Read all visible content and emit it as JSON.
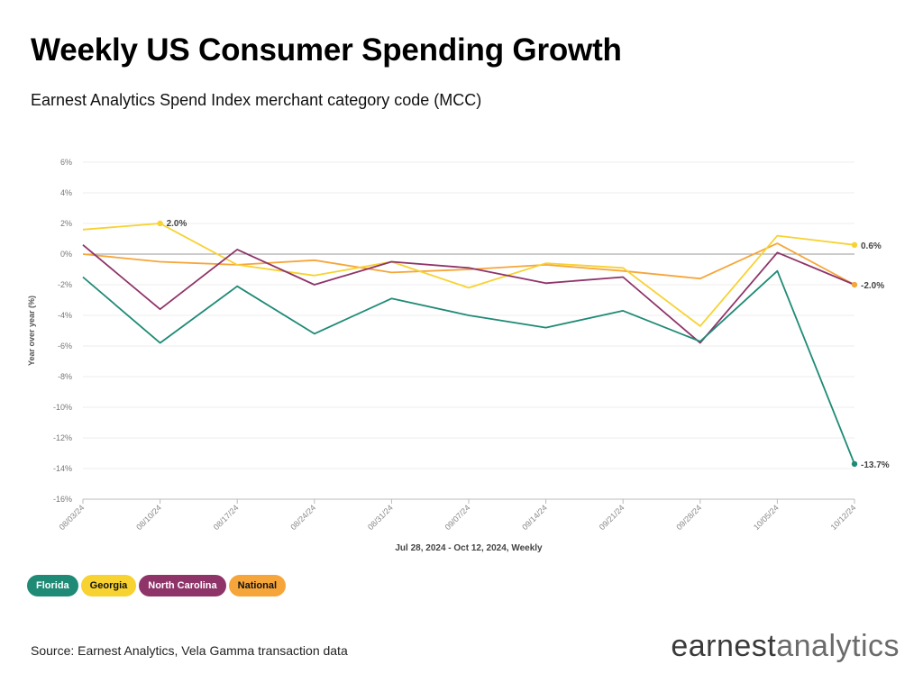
{
  "header": {
    "title": "Weekly US Consumer Spending Growth",
    "subtitle": "Earnest Analytics Spend Index merchant category code (MCC)"
  },
  "footer": {
    "source": "Source: Earnest Analytics, Vela Gamma transaction data",
    "brand_part1": "earnest",
    "brand_part2": "analytics"
  },
  "legend": [
    {
      "label": "Florida",
      "bg": "#1f8a76",
      "fg": "#ffffff"
    },
    {
      "label": "Georgia",
      "bg": "#f7d230",
      "fg": "#111111"
    },
    {
      "label": "North Carolina",
      "bg": "#8e3469",
      "fg": "#ffffff"
    },
    {
      "label": "National",
      "bg": "#f6a53a",
      "fg": "#111111"
    }
  ],
  "chart_data": {
    "type": "line",
    "xlabel": "Jul 28, 2024 - Oct 12, 2024, Weekly",
    "ylabel": "Year over year (%)",
    "ylim": [
      -16,
      6
    ],
    "yticks": [
      6,
      4,
      2,
      0,
      -2,
      -4,
      -6,
      -8,
      -10,
      -12,
      -14,
      -16
    ],
    "ytick_labels": [
      "6%",
      "4%",
      "2%",
      "0%",
      "-2%",
      "-4%",
      "-6%",
      "-8%",
      "-10%",
      "-12%",
      "-14%",
      "-16%"
    ],
    "categories": [
      "08/03/24",
      "08/10/24",
      "08/17/24",
      "08/24/24",
      "08/31/24",
      "09/07/24",
      "09/14/24",
      "09/21/24",
      "09/28/24",
      "10/05/24",
      "10/12/24"
    ],
    "grid": true,
    "series": [
      {
        "name": "Florida",
        "color": "#1f8a76",
        "values": [
          -1.5,
          -5.8,
          -2.1,
          -5.2,
          -2.9,
          -4.0,
          -4.8,
          -3.7,
          -5.7,
          -1.1,
          -13.7
        ],
        "end_label": "-13.7%"
      },
      {
        "name": "Georgia",
        "color": "#f7d230",
        "values": [
          1.6,
          2.0,
          -0.7,
          -1.4,
          -0.5,
          -2.2,
          -0.6,
          -0.9,
          -4.7,
          1.2,
          0.6
        ],
        "end_label": "0.6%",
        "peak_label": "2.0%",
        "peak_index": 1
      },
      {
        "name": "North Carolina",
        "color": "#8e3469",
        "values": [
          0.6,
          -3.6,
          0.3,
          -2.0,
          -0.5,
          -0.9,
          -1.9,
          -1.5,
          -5.8,
          0.1,
          -2.0
        ]
      },
      {
        "name": "National",
        "color": "#f6a53a",
        "values": [
          0.0,
          -0.5,
          -0.7,
          -0.4,
          -1.2,
          -1.0,
          -0.7,
          -1.1,
          -1.6,
          0.7,
          -2.0
        ],
        "end_label": "-2.0%"
      }
    ]
  }
}
